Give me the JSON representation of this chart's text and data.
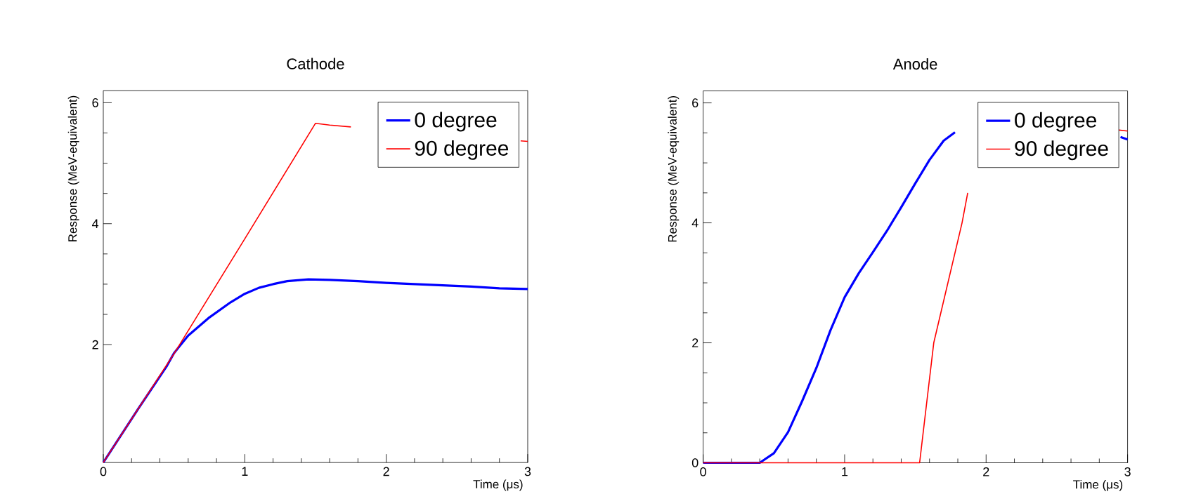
{
  "chart_data": [
    {
      "type": "line",
      "title": "Cathode",
      "xlabel": "Time (μs)",
      "ylabel": "Response (MeV-equivalent)",
      "xlim": [
        0,
        3
      ],
      "ylim": [
        0.05,
        6.2
      ],
      "xticks": [
        0,
        1,
        2,
        3
      ],
      "yticks": [
        2,
        4,
        6
      ],
      "grid": false,
      "legend": "top right",
      "marker": "none",
      "line_style": "solid",
      "series": [
        {
          "name": "0 degree",
          "color": "#0000ff",
          "x": [
            0,
            0.25,
            0.45,
            0.5,
            0.6,
            0.75,
            0.9,
            1.0,
            1.1,
            1.2,
            1.3,
            1.45,
            1.6,
            1.8,
            2.0,
            2.2,
            2.4,
            2.6,
            2.8,
            3.0
          ],
          "values": [
            0.05,
            0.95,
            1.65,
            1.86,
            2.15,
            2.45,
            2.7,
            2.84,
            2.94,
            3.0,
            3.05,
            3.08,
            3.07,
            3.05,
            3.02,
            3.0,
            2.98,
            2.96,
            2.93,
            2.92
          ]
        },
        {
          "name": "90 degree",
          "color": "#ff0000",
          "x": [
            0,
            0.5,
            1.0,
            1.5,
            1.6,
            1.75,
            2.3,
            2.95,
            3.0
          ],
          "values": [
            0.05,
            1.85,
            3.75,
            5.66,
            5.63,
            5.6,
            null,
            5.37,
            5.36
          ]
        }
      ]
    },
    {
      "type": "line",
      "title": "Anode",
      "xlabel": "Time (μs)",
      "ylabel": "Response (MeV-equivalent)",
      "xlim": [
        0,
        3
      ],
      "ylim": [
        0,
        6.2
      ],
      "xticks": [
        0,
        1,
        2,
        3
      ],
      "yticks": [
        0,
        2,
        4,
        6
      ],
      "grid": false,
      "legend": "top right",
      "marker": "none",
      "line_style": "solid",
      "series": [
        {
          "name": "0 degree",
          "color": "#0000ff",
          "x": [
            0,
            0.4,
            0.5,
            0.6,
            0.7,
            0.8,
            0.9,
            1.0,
            1.1,
            1.2,
            1.3,
            1.4,
            1.5,
            1.6,
            1.7,
            1.78,
            2.3,
            2.95,
            3.0
          ],
          "values": [
            0,
            0,
            0.16,
            0.51,
            1.03,
            1.58,
            2.21,
            2.76,
            3.16,
            3.51,
            3.87,
            4.26,
            4.66,
            5.05,
            5.37,
            5.51,
            null,
            5.43,
            5.39
          ]
        },
        {
          "name": "90 degree",
          "color": "#ff0000",
          "x": [
            0,
            1.53,
            1.63,
            1.83,
            1.87,
            2.4,
            2.93,
            3.0
          ],
          "values": [
            0,
            0,
            2,
            4,
            4.5,
            null,
            5.55,
            5.53
          ]
        }
      ]
    }
  ]
}
